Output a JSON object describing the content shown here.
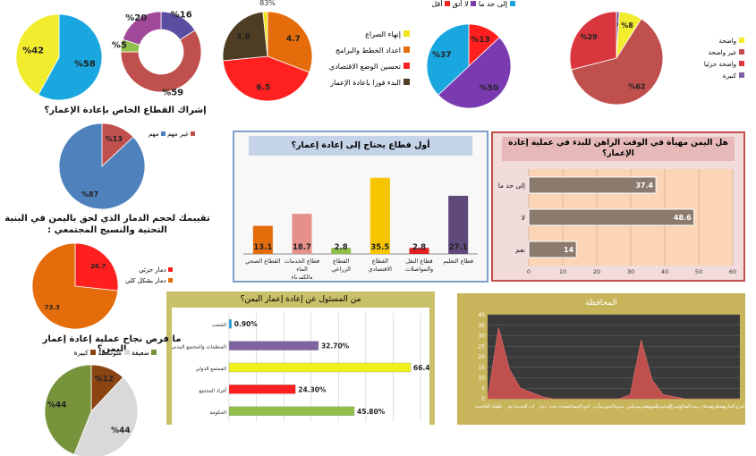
{
  "chart_data": [
    {
      "id": "pie_a",
      "type": "pie",
      "slices": [
        {
          "label": "%58",
          "value": 58,
          "color": "#1aa7e0"
        },
        {
          "label": "%42",
          "value": 42,
          "color": "#f2ec2e"
        }
      ]
    },
    {
      "id": "donut_b",
      "type": "pie",
      "slices": [
        {
          "label": "%16",
          "value": 16,
          "color": "#5b4ea0"
        },
        {
          "label": "%59",
          "value": 59,
          "color": "#c0504d"
        },
        {
          "label": "%5",
          "value": 5,
          "color": "#8fbf4a"
        },
        {
          "label": "%20",
          "value": 20,
          "color": "#a0499a"
        }
      ]
    },
    {
      "id": "pie_c",
      "type": "pie",
      "top_label": "83%",
      "slices": [
        {
          "label": "4.7",
          "value": 4.7,
          "color": "#e46c0a",
          "name": "اعداد الخطط والبرامج"
        },
        {
          "label": "6.5",
          "value": 6.5,
          "color": "#ff2020",
          "name": "تحسين الوضع الاقتصادي"
        },
        {
          "label": "3.8",
          "value": 3.8,
          "color": "#4e3d22",
          "name": "البدء فوزا باعادة الإعمار"
        },
        {
          "label": "",
          "value": 0.25,
          "color": "#f2e21a",
          "name": "إنهاء الصراع"
        }
      ]
    },
    {
      "id": "pie_d",
      "type": "pie",
      "slices": [
        {
          "label": "%13",
          "value": 13,
          "color": "#ff1f1f",
          "name": "أقل"
        },
        {
          "label": "%50",
          "value": 50,
          "color": "#7a3bb0",
          "name": "لا أتق"
        },
        {
          "label": "%37",
          "value": 37,
          "color": "#1aa7e0",
          "name": "إلى حد ما"
        }
      ]
    },
    {
      "id": "pie_e",
      "type": "pie",
      "slices": [
        {
          "label": "%1",
          "value": 1,
          "color": "#7b5ea7",
          "name": "كبيرة"
        },
        {
          "label": "%8",
          "value": 8,
          "color": "#f2ec2e",
          "name": "واضحة"
        },
        {
          "label": "%62",
          "value": 62,
          "color": "#c0504d",
          "name": "غير واضحة"
        },
        {
          "label": "%29",
          "value": 29,
          "color": "#d9363e",
          "name": "واضحة جزئيا"
        }
      ]
    },
    {
      "id": "pie_f",
      "type": "pie",
      "title": "إشراك القطاع الخاص بإعادة الإعمار؟",
      "slices": [
        {
          "label": "%13",
          "value": 13,
          "color": "#c0504d",
          "name": "غير مهم"
        },
        {
          "label": "%87",
          "value": 87,
          "color": "#4f81bd",
          "name": "مهم"
        }
      ]
    },
    {
      "id": "bar_g",
      "type": "bar",
      "title": "أول قطاع يحتاج إلى إعادة إعمار؟",
      "categories": [
        "القطاع الصحي",
        "قطاع الخدمات الماء والكهرباء",
        "القطاع الزراعي",
        "القطاع الاقتصادي",
        "قطاع النقل والمواصلات",
        "قطاع التعليم"
      ],
      "values": [
        13.1,
        18.7,
        2.8,
        35.5,
        2.8,
        27.1
      ],
      "colors": [
        "#e46c0a",
        "#e6908b",
        "#8fbf4a",
        "#f6c500",
        "#e02020",
        "#604a7b"
      ],
      "ylim": [
        0,
        40
      ]
    },
    {
      "id": "hbar_h",
      "type": "bar",
      "orientation": "horizontal",
      "title": "هل اليمن مهيأة في الوقت الراهن للبدء في عملية إعادة الإعمار؟",
      "categories": [
        "إلى حد ما",
        "لا",
        "نعم"
      ],
      "values": [
        37.4,
        48.6,
        14
      ],
      "x_ticks": [
        0,
        10,
        20,
        30,
        40,
        50,
        60
      ],
      "xlim": [
        0,
        60
      ]
    },
    {
      "id": "pie_i",
      "type": "pie",
      "title": "تقييمك لحجم الدمار الذي لحق باليمن في البنية التحتية والنسيج المجتمعي :",
      "slices": [
        {
          "label": "26.7",
          "value": 26.7,
          "color": "#ff1f1f",
          "name": "دمار جزئي"
        },
        {
          "label": "73.3",
          "value": 73.3,
          "color": "#e46c0a",
          "name": "دمار بشكل كلي"
        }
      ]
    },
    {
      "id": "hbar_j",
      "type": "bar",
      "orientation": "horizontal",
      "title": "من المسئول عن إعادة إعمار اليمن؟",
      "categories": [
        "الشعب",
        "المنظمات والمجتمع المدني",
        "المجتمع الدولي",
        "أفراد المجتمع",
        "الحكومة"
      ],
      "values": [
        0.9,
        32.7,
        66.4,
        24.3,
        45.8
      ],
      "labels": [
        "0.90%",
        "32.70%",
        "66.40%",
        "24.30%",
        "45.80%"
      ],
      "colors": [
        "#1aa7e0",
        "#8064a2",
        "#f2f21a",
        "#ff1f1f",
        "#8fbf4a"
      ],
      "xlim": [
        0,
        70
      ]
    },
    {
      "id": "pie_k",
      "type": "pie",
      "title": "ما فرص نجاح عملية إعادة إعمار اليمن؟",
      "slices": [
        {
          "label": "%12",
          "value": 12,
          "color": "#8b4513",
          "name": "كبيرة"
        },
        {
          "label": "%44",
          "value": 44,
          "color": "#d9d9d9",
          "name": "متوسطة"
        },
        {
          "label": "%44",
          "value": 44,
          "color": "#77933c",
          "name": "ضعيفة"
        }
      ]
    },
    {
      "id": "area_l",
      "type": "area",
      "title": "المحافظة",
      "y_ticks": [
        0,
        5,
        10,
        15,
        20,
        25,
        30,
        35,
        40
      ],
      "ylim": [
        0,
        40
      ],
      "categories": [
        "أمانة العاصمة",
        "عدن",
        "تعز",
        "الحديدة",
        "إب",
        "ذمار",
        "حجة",
        "صعدة",
        "البيضاء",
        "لحج",
        "مأرب",
        "الجوف",
        "شبوة",
        "أبين",
        "حضرموت",
        "المهرة",
        "المحويت",
        "عمران",
        "الضالع",
        "ريمة",
        "صنعاء",
        "سقطرى",
        "الخارج",
        "أخرى"
      ],
      "values": [
        0,
        34,
        14,
        5,
        3,
        1,
        0,
        0,
        0,
        0,
        0,
        0,
        0,
        2,
        28,
        9,
        2,
        1,
        0,
        0,
        0,
        0,
        0,
        0
      ]
    }
  ]
}
